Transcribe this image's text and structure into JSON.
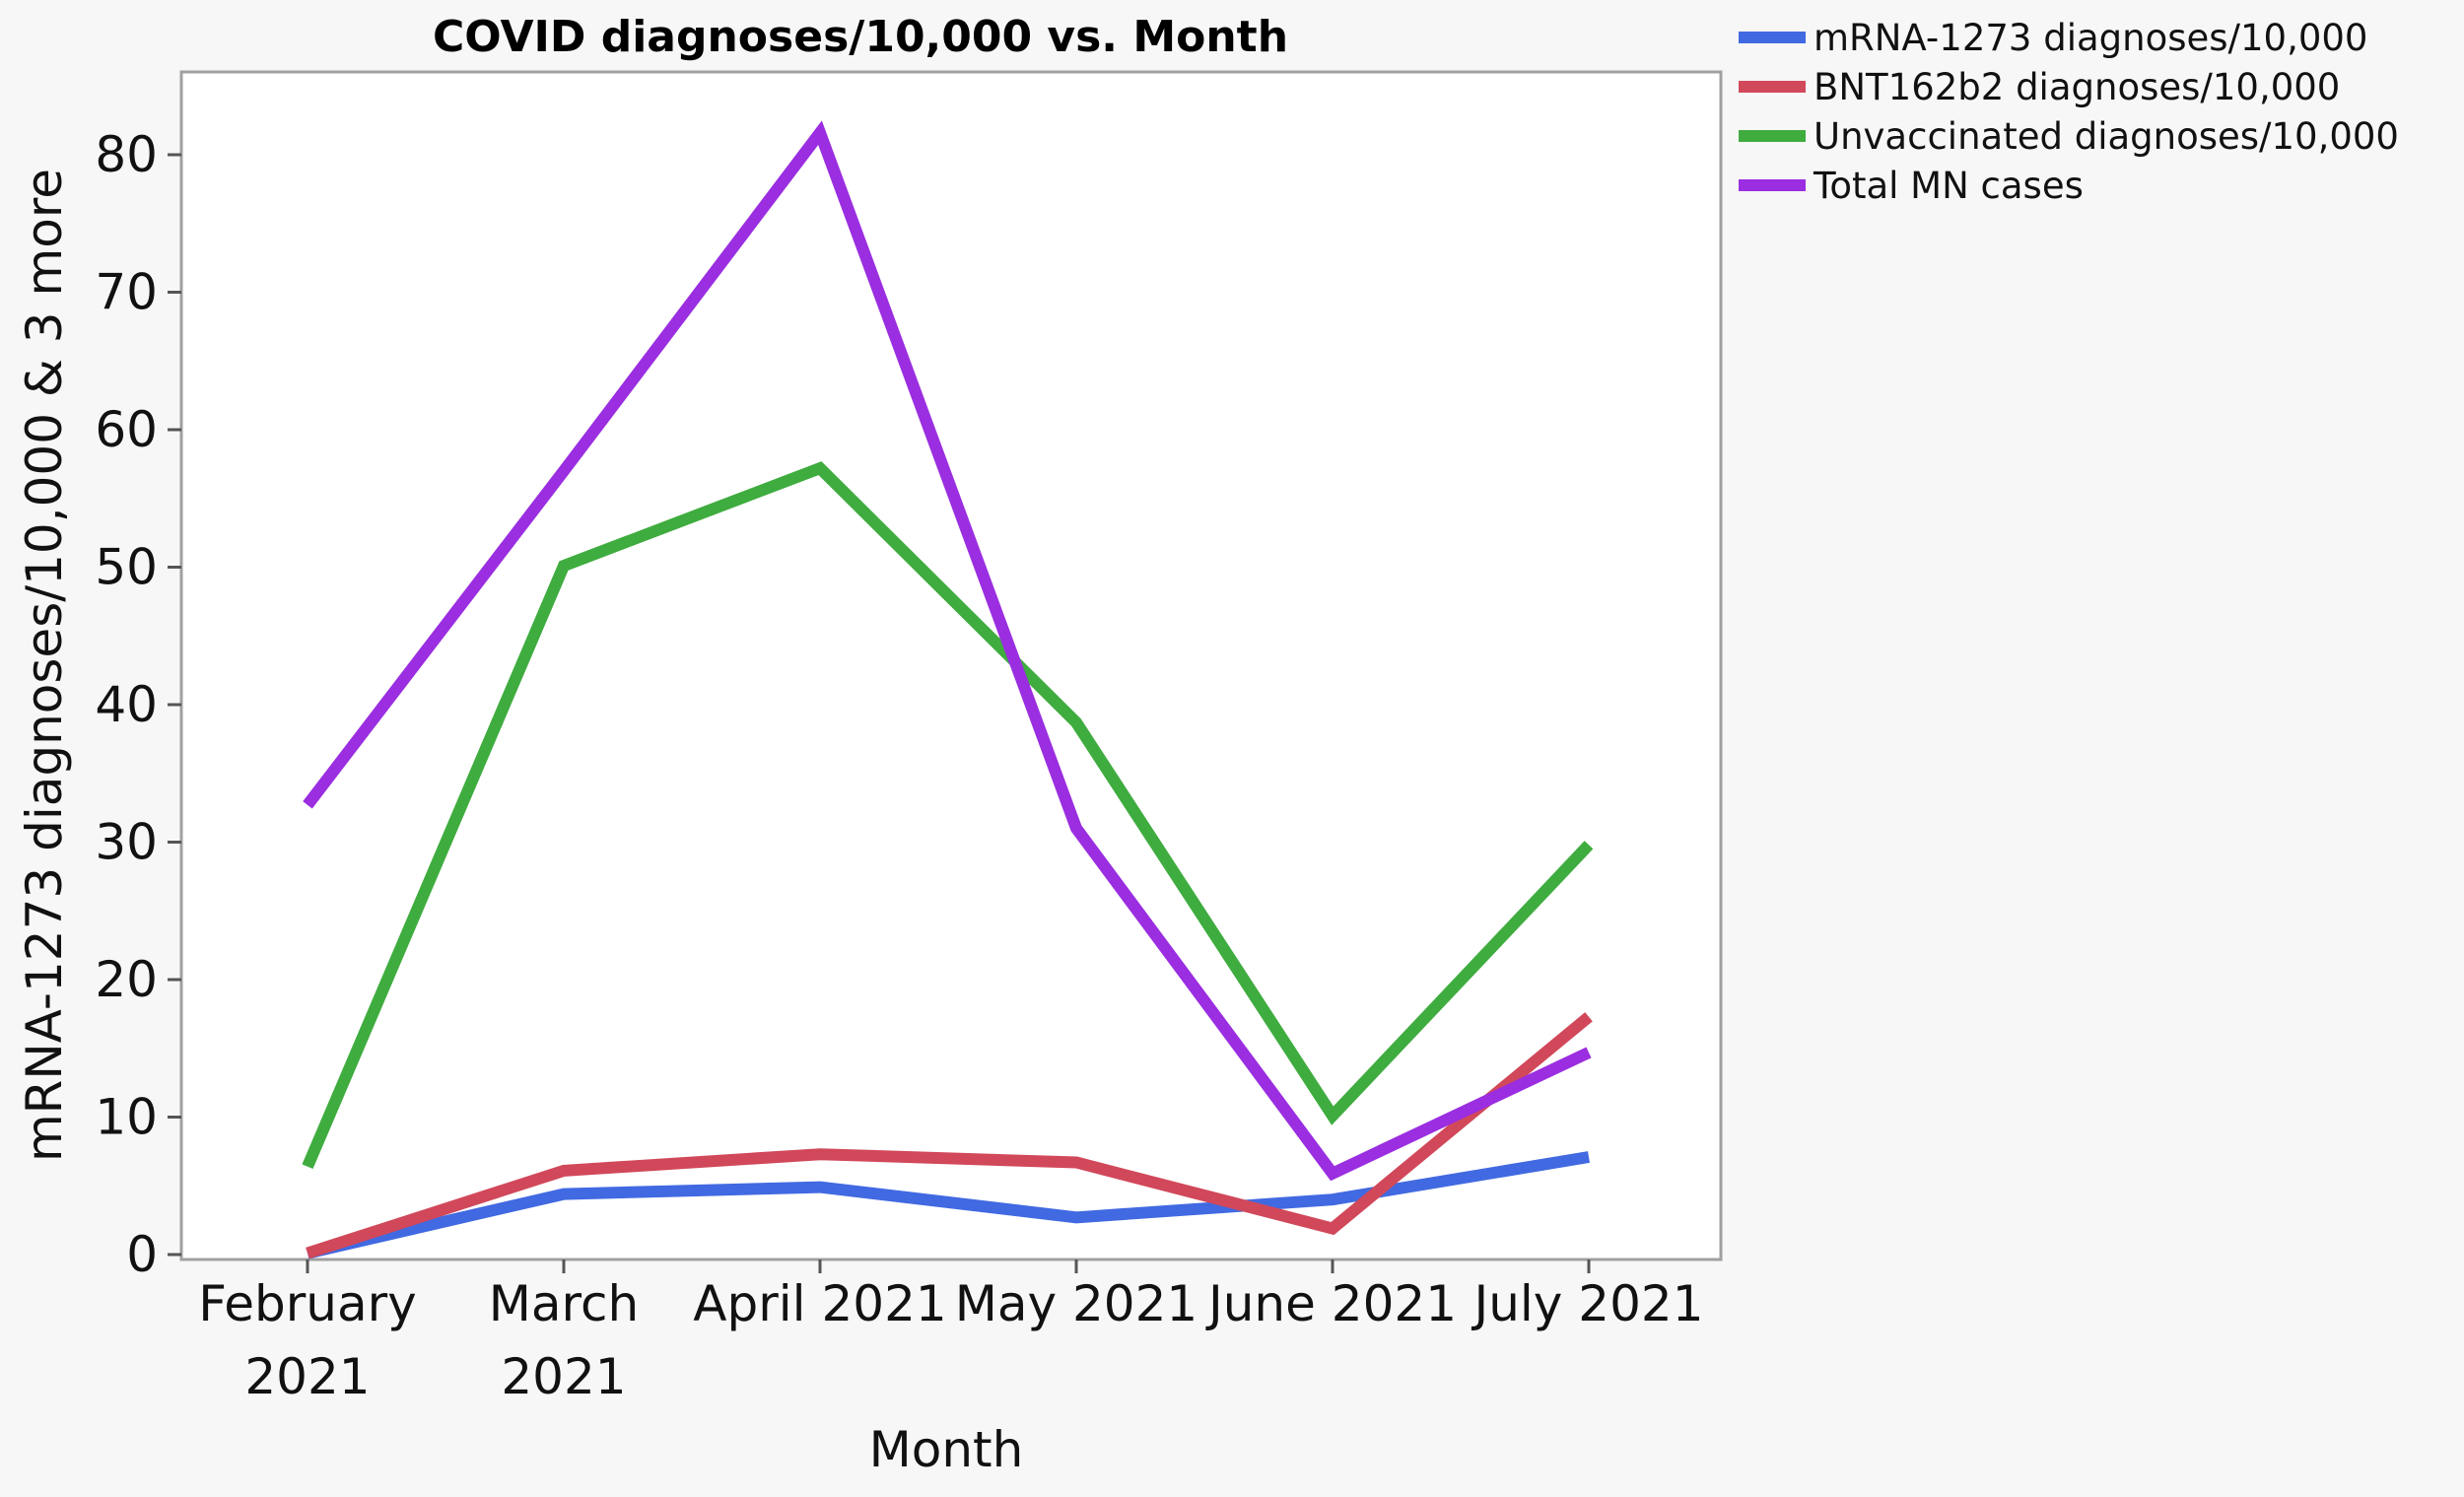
{
  "chart_data": {
    "type": "line",
    "title": "COVID diagnoses/10,000 vs. Month",
    "xlabel": "Month",
    "ylabel": "mRNA-1273 diagnoses/10,000 & 3 more",
    "categories": [
      [
        "February",
        "2021"
      ],
      [
        "March",
        "2021"
      ],
      [
        "April 2021"
      ],
      [
        "May 2021"
      ],
      [
        "June 2021"
      ],
      [
        "July 2021"
      ]
    ],
    "ylim": [
      0,
      86
    ],
    "yticks": [
      0,
      10,
      20,
      30,
      40,
      50,
      60,
      70,
      80
    ],
    "grid": false,
    "legend_position": "right-top",
    "series": [
      {
        "name": "mRNA-1273 diagnoses/10,000",
        "color": "#4169e1",
        "values": [
          0.1,
          4.4,
          4.9,
          2.7,
          4.0,
          7.1
        ]
      },
      {
        "name": "BNT162b2 diagnoses/10,000",
        "color": "#d1485a",
        "values": [
          0.1,
          6.1,
          7.3,
          6.7,
          1.9,
          17.3
        ]
      },
      {
        "name": "Unvaccinated diagnoses/10,000",
        "color": "#3fac3f",
        "values": [
          6.4,
          50.1,
          57.2,
          38.7,
          10.1,
          29.8
        ]
      },
      {
        "name": "Total MN cases",
        "color": "#9a2ee0",
        "values": [
          32.7,
          57.0,
          81.6,
          31.0,
          5.9,
          14.7
        ]
      }
    ]
  }
}
